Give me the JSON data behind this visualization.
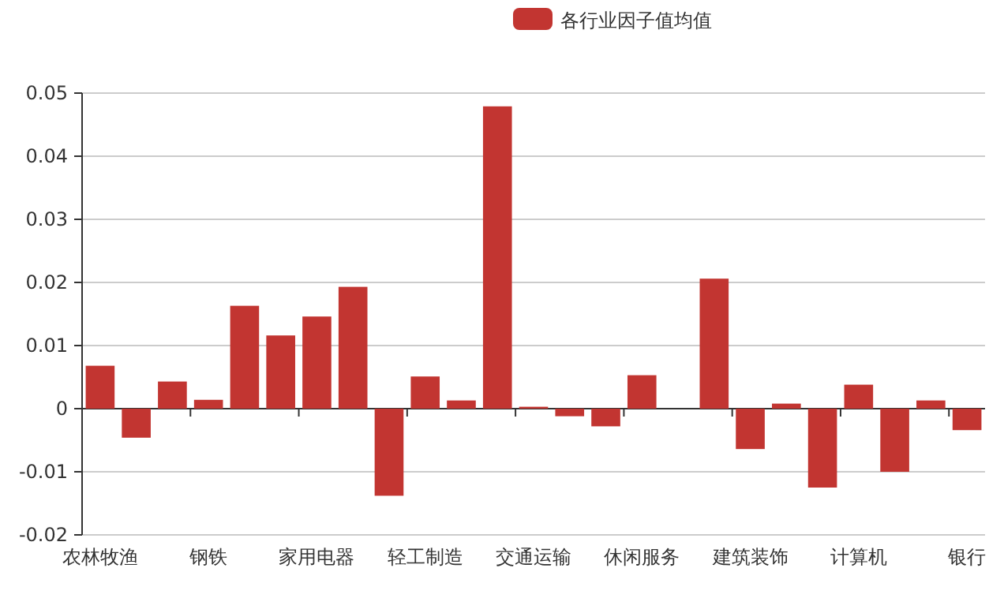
{
  "chart_data": {
    "type": "bar",
    "categories": [
      "农林牧渔",
      null,
      null,
      "钢铁",
      null,
      null,
      "家用电器",
      null,
      null,
      "轻工制造",
      null,
      null,
      "交通运输",
      null,
      null,
      "休闲服务",
      null,
      null,
      "建筑装饰",
      null,
      null,
      "计算机",
      null,
      null,
      "银行"
    ],
    "series": [
      {
        "name": "各行业因子值均值",
        "color": "#c23531",
        "values": [
          0.0068,
          -0.0046,
          0.0043,
          0.0014,
          0.0163,
          0.0116,
          0.0146,
          0.0193,
          -0.0138,
          0.0051,
          0.0013,
          0.0479,
          0.0003,
          -0.0012,
          -0.0028,
          0.0053,
          null,
          0.0206,
          -0.0064,
          0.0008,
          -0.0125,
          0.0038,
          -0.01,
          0.0013,
          -0.0034
        ]
      }
    ],
    "ylim": [
      -0.02,
      0.05
    ],
    "yticks": [
      -0.02,
      -0.01,
      0,
      0.01,
      0.02,
      0.03,
      0.04,
      0.05
    ],
    "grid": "y",
    "legend": "top"
  }
}
